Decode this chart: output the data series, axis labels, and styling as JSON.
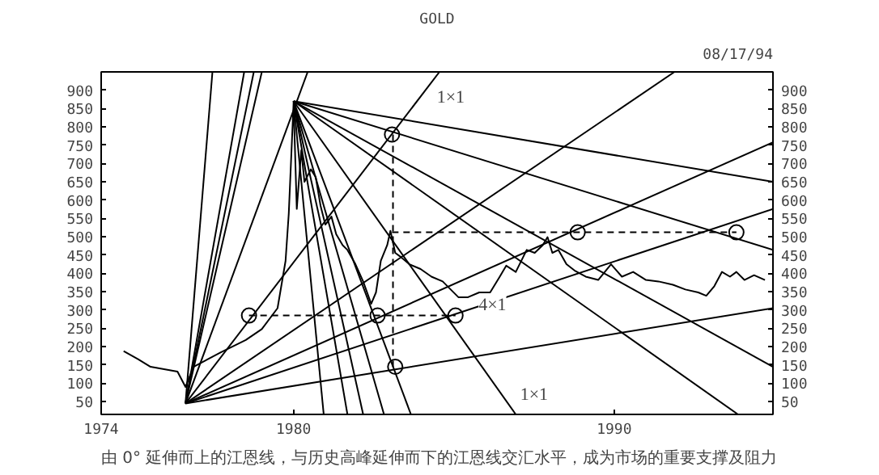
{
  "chart_data": {
    "type": "line",
    "title": "GOLD",
    "xlim": [
      1974,
      1994.95
    ],
    "ylim": [
      15,
      950
    ],
    "y2lim": [
      15,
      950
    ],
    "xticks": [
      1974,
      1980,
      1990
    ],
    "yticks": [
      50,
      100,
      150,
      200,
      250,
      300,
      350,
      400,
      450,
      500,
      550,
      600,
      650,
      700,
      750,
      800,
      850,
      900
    ],
    "y2ticks": [
      50,
      100,
      150,
      200,
      250,
      300,
      350,
      400,
      450,
      500,
      550,
      600,
      650,
      700,
      750,
      800,
      850,
      900
    ],
    "grid": false,
    "annotations": [
      "08/17/94",
      {
        "text": "1×1",
        "x": 1984.9,
        "y": 880
      },
      {
        "text": "4×1",
        "x": 1986.2,
        "y": 313
      },
      {
        "text": "1×1",
        "x": 1987.5,
        "y": 67
      },
      "由 0° 延伸而上的江恩线，与历史高峰延伸而下的江恩线交汇水平，成为市场的重要支撑及阻力"
    ],
    "series": [
      {
        "color": "#000000",
        "marker": "none",
        "line_style": "solid",
        "x": [
          1974.7,
          1975.15,
          1975.54,
          1976.38,
          1976.63,
          1976.88,
          1977.72,
          1978.51,
          1979.01,
          1979.5,
          1979.75,
          1979.85,
          1980.0,
          1980.1,
          1980.24,
          1980.34,
          1980.54,
          1980.69,
          1980.84,
          1980.99,
          1981.18,
          1981.33,
          1981.53,
          1981.68,
          1981.93,
          1982.17,
          1982.42,
          1982.57,
          1982.72,
          1982.92,
          1983.02,
          1983.17,
          1983.31,
          1983.61,
          1983.96,
          1984.3,
          1984.65,
          1984.9,
          1985.14,
          1985.44,
          1985.79,
          1986.13,
          1986.43,
          1986.63,
          1986.93,
          1987.27,
          1987.52,
          1987.77,
          1987.92,
          1988.07,
          1988.26,
          1988.51,
          1988.76,
          1989.11,
          1989.5,
          1989.9,
          1990.24,
          1990.59,
          1990.99,
          1991.38,
          1991.83,
          1992.22,
          1992.62,
          1992.87,
          1993.12,
          1993.36,
          1993.61,
          1993.81,
          1994.06,
          1994.36,
          1994.7
        ],
        "values": [
          188,
          166,
          145,
          132,
          90,
          145,
          184,
          218,
          248,
          305,
          434,
          563,
          865,
          576,
          736,
          650,
          684,
          663,
          585,
          533,
          555,
          507,
          477,
          464,
          425,
          378,
          317,
          348,
          434,
          477,
          516,
          456,
          447,
          425,
          412,
          391,
          378,
          356,
          335,
          335,
          348,
          348,
          391,
          421,
          404,
          464,
          456,
          477,
          499,
          456,
          464,
          425,
          408,
          391,
          382,
          425,
          391,
          404,
          382,
          378,
          369,
          356,
          348,
          339,
          365,
          404,
          391,
          404,
          382,
          395,
          382
        ]
      },
      {
        "color": "#000000",
        "line_style": "solid",
        "x": [
          1976.63,
          1977.47
        ],
        "values": [
          45,
          950
        ]
      },
      {
        "color": "#000000",
        "line_style": "solid",
        "x": [
          1976.63,
          1978.46
        ],
        "values": [
          45,
          950
        ]
      },
      {
        "color": "#000000",
        "line_style": "solid",
        "x": [
          1976.63,
          1978.76
        ],
        "values": [
          45,
          950
        ]
      },
      {
        "color": "#000000",
        "line_style": "solid",
        "x": [
          1976.63,
          1979.01
        ],
        "values": [
          45,
          950
        ]
      },
      {
        "color": "#000000",
        "line_style": "solid",
        "x": [
          1976.63,
          1980.44
        ],
        "values": [
          45,
          950
        ]
      },
      {
        "color": "#000000",
        "line_style": "solid",
        "x": [
          1976.63,
          1984.55
        ],
        "values": [
          45,
          950
        ]
      },
      {
        "color": "#000000",
        "line_style": "solid",
        "x": [
          1976.63,
          1991.88
        ],
        "values": [
          45,
          950
        ]
      },
      {
        "color": "#000000",
        "line_style": "solid",
        "x": [
          1976.63,
          1994.95
        ],
        "values": [
          45,
          758
        ]
      },
      {
        "color": "#000000",
        "line_style": "solid",
        "x": [
          1976.63,
          1994.95
        ],
        "values": [
          45,
          576
        ]
      },
      {
        "color": "#000000",
        "line_style": "solid",
        "x": [
          1976.63,
          1994.95
        ],
        "values": [
          45,
          305
        ]
      },
      {
        "color": "#000000",
        "line_style": "solid",
        "x": [
          1980.0,
          1994.95
        ],
        "values": [
          870,
          650
        ]
      },
      {
        "color": "#000000",
        "line_style": "solid",
        "x": [
          1980.0,
          1994.95
        ],
        "values": [
          870,
          464
        ]
      },
      {
        "color": "#000000",
        "line_style": "solid",
        "x": [
          1980.0,
          1994.95
        ],
        "values": [
          870,
          145
        ]
      },
      {
        "color": "#000000",
        "line_style": "solid",
        "x": [
          1980.0,
          1980.94
        ],
        "values": [
          870,
          15
        ]
      },
      {
        "color": "#000000",
        "line_style": "solid",
        "x": [
          1980.0,
          1981.68
        ],
        "values": [
          870,
          15
        ]
      },
      {
        "color": "#000000",
        "line_style": "solid",
        "x": [
          1980.0,
          1982.17
        ],
        "values": [
          870,
          15
        ]
      },
      {
        "color": "#000000",
        "line_style": "solid",
        "x": [
          1980.0,
          1982.82
        ],
        "values": [
          870,
          15
        ]
      },
      {
        "color": "#000000",
        "line_style": "solid",
        "x": [
          1980.0,
          1983.66
        ],
        "values": [
          870,
          15
        ]
      },
      {
        "color": "#000000",
        "line_style": "solid",
        "x": [
          1980.0,
          1986.93
        ],
        "values": [
          870,
          15
        ]
      },
      {
        "color": "#000000",
        "line_style": "solid",
        "x": [
          1980.0,
          1993.86
        ],
        "values": [
          870,
          15
        ]
      },
      {
        "color": "#000000",
        "line_style": "dashed",
        "x": [
          1983.07,
          1993.81
        ],
        "values": [
          512,
          512
        ]
      },
      {
        "color": "#000000",
        "line_style": "dashed",
        "x": [
          1978.61,
          1985.05
        ],
        "values": [
          285,
          285
        ]
      },
      {
        "color": "#000000",
        "line_style": "dashed",
        "x": [
          1983.1,
          1983.1
        ],
        "values": [
          779,
          145
        ]
      },
      {
        "type": "scatter",
        "color": "#000000",
        "marker": "circle",
        "x": [
          1978.61,
          1982.62,
          1985.05,
          1983.07,
          1983.17,
          1988.86,
          1993.81
        ],
        "values": [
          285,
          285,
          285,
          779,
          145,
          512,
          512
        ]
      }
    ]
  }
}
